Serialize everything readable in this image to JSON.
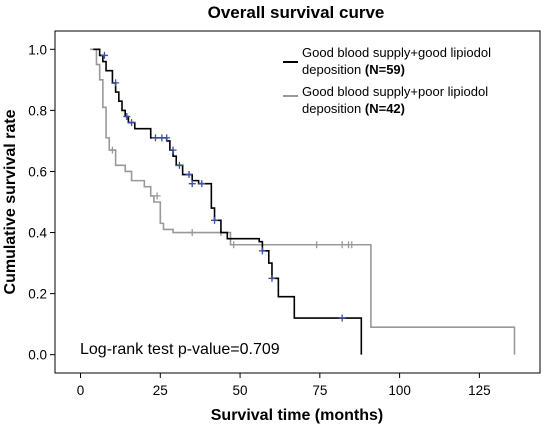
{
  "chart_data": {
    "type": "line",
    "title": "Overall survival curve",
    "xlabel": "Survival time (months)",
    "ylabel": "Cumulative survival rate",
    "xlim": [
      -8,
      144
    ],
    "ylim": [
      -0.06,
      1.06
    ],
    "x_ticks": [
      0,
      25,
      50,
      75,
      100,
      125
    ],
    "y_ticks": [
      0.0,
      0.2,
      0.4,
      0.6,
      0.8,
      1.0
    ],
    "x_tick_labels": [
      "0",
      "25",
      "50",
      "75",
      "100",
      "125"
    ],
    "y_tick_labels": [
      "0.0",
      "0.2",
      "0.4",
      "0.6",
      "0.8",
      "1.0"
    ],
    "legend_position": "top-right",
    "annotation": "Log-rank test p-value=0.709",
    "series": [
      {
        "name_line1": "Good blood supply+good lipiodol",
        "name_line2": "deposition ",
        "name_count": "(N=59)",
        "color": "#000000",
        "censor_color": "#3d4fa8",
        "steps": [
          [
            4,
            1.0
          ],
          [
            6,
            0.98
          ],
          [
            7,
            0.96
          ],
          [
            8,
            0.93
          ],
          [
            10,
            0.89
          ],
          [
            11,
            0.86
          ],
          [
            12,
            0.83
          ],
          [
            13,
            0.8
          ],
          [
            14,
            0.78
          ],
          [
            15,
            0.76
          ],
          [
            17,
            0.74
          ],
          [
            22,
            0.71
          ],
          [
            25,
            0.71
          ],
          [
            27,
            0.7
          ],
          [
            28,
            0.67
          ],
          [
            29,
            0.65
          ],
          [
            30,
            0.62
          ],
          [
            32,
            0.59
          ],
          [
            35,
            0.57
          ],
          [
            37,
            0.56
          ],
          [
            41,
            0.48
          ],
          [
            42,
            0.44
          ],
          [
            44,
            0.4
          ],
          [
            46,
            0.38
          ],
          [
            56,
            0.37
          ],
          [
            57,
            0.34
          ],
          [
            59,
            0.3
          ],
          [
            60,
            0.25
          ],
          [
            62,
            0.19
          ],
          [
            67,
            0.12
          ],
          [
            88,
            0.12
          ],
          [
            88,
            0.0
          ]
        ],
        "censored": [
          [
            7.5,
            0.98
          ],
          [
            11,
            0.89
          ],
          [
            14.5,
            0.78
          ],
          [
            16,
            0.76
          ],
          [
            23.5,
            0.71
          ],
          [
            25.5,
            0.71
          ],
          [
            27,
            0.71
          ],
          [
            29,
            0.67
          ],
          [
            31,
            0.62
          ],
          [
            34,
            0.59
          ],
          [
            35,
            0.56
          ],
          [
            38,
            0.56
          ],
          [
            42,
            0.44
          ],
          [
            57,
            0.34
          ],
          [
            60,
            0.25
          ],
          [
            82,
            0.12
          ]
        ]
      },
      {
        "name_line1": "Good blood supply+poor lipiodol",
        "name_line2": "deposition ",
        "name_count": "(N=42)",
        "color": "#999999",
        "censor_color": "#999999",
        "steps": [
          [
            3,
            1.0
          ],
          [
            5,
            0.95
          ],
          [
            6,
            0.9
          ],
          [
            7,
            0.81
          ],
          [
            8,
            0.71
          ],
          [
            9,
            0.67
          ],
          [
            11,
            0.62
          ],
          [
            14,
            0.6
          ],
          [
            16,
            0.57
          ],
          [
            20,
            0.55
          ],
          [
            22,
            0.52
          ],
          [
            23,
            0.5
          ],
          [
            25,
            0.43
          ],
          [
            26,
            0.41
          ],
          [
            29,
            0.4
          ],
          [
            47,
            0.36
          ],
          [
            90,
            0.36
          ],
          [
            91,
            0.09
          ],
          [
            136,
            0.09
          ],
          [
            136,
            0.0
          ]
        ],
        "censored": [
          [
            10,
            0.67
          ],
          [
            24,
            0.52
          ],
          [
            35,
            0.4
          ],
          [
            44,
            0.4
          ],
          [
            48,
            0.36
          ],
          [
            74,
            0.36
          ],
          [
            82,
            0.36
          ],
          [
            84,
            0.36
          ],
          [
            85,
            0.36
          ]
        ]
      }
    ]
  }
}
